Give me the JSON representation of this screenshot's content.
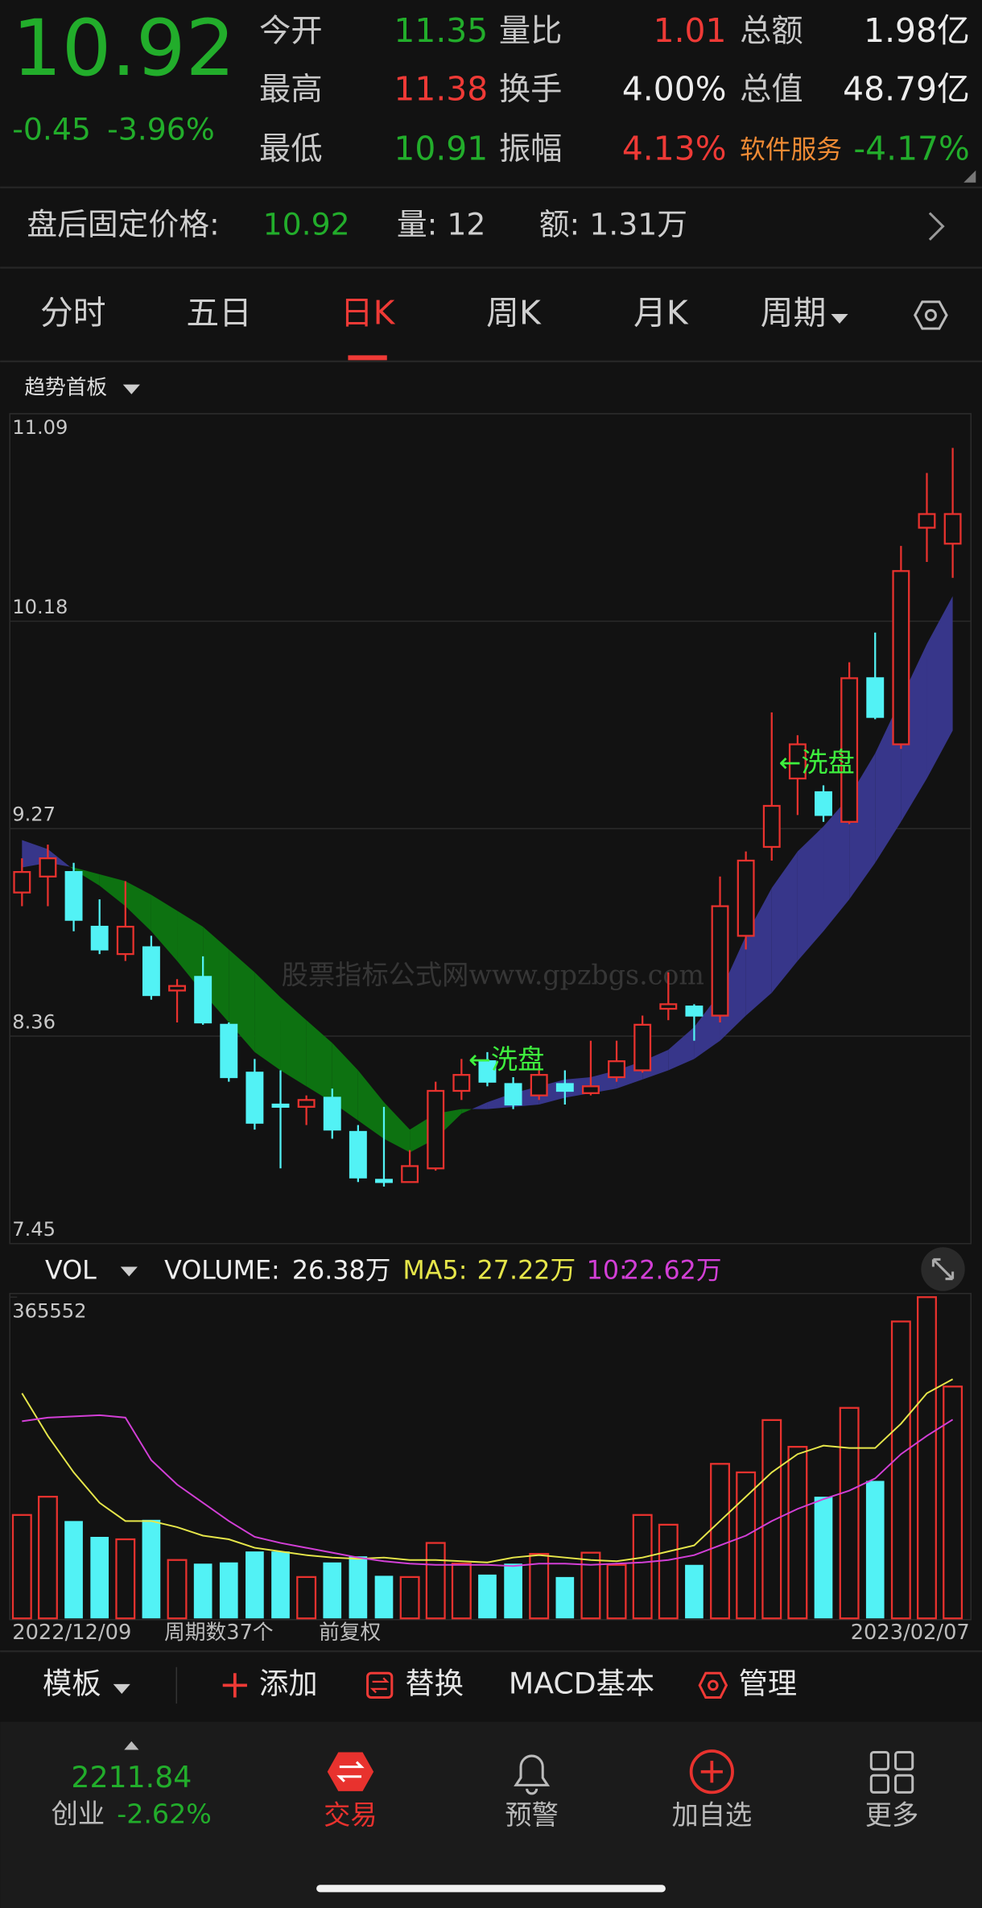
{
  "header": {
    "price": "10.92",
    "change": "-0.45",
    "change_pct": "-3.96%",
    "stats": [
      {
        "label": "今开",
        "value": "11.35"
      },
      {
        "label": "量比",
        "value": "1.01"
      },
      {
        "label": "总额",
        "value": "1.98亿"
      },
      {
        "label": "最高",
        "value": "11.38"
      },
      {
        "label": "换手",
        "value": "4.00%"
      },
      {
        "label": "总值",
        "value": "48.79亿"
      },
      {
        "label": "最低",
        "value": "10.91"
      },
      {
        "label": "振幅",
        "value": "4.13%"
      },
      {
        "label": "软件服务",
        "value": "-4.17%"
      }
    ]
  },
  "after_hours": {
    "label": "盘后固定价格:",
    "price": "10.92",
    "volume": "量: 12",
    "amount": "额: 1.31万"
  },
  "tabs": [
    "分时",
    "五日",
    "日K",
    "周K",
    "月K",
    "周期"
  ],
  "indicator": "趋势首板",
  "chart_data": [
    {
      "type": "candlestick",
      "up_color": "#e8322e",
      "down_color": "#52f2f5",
      "open": [
        8.99,
        9.06,
        9.08,
        8.84,
        8.72,
        8.75,
        8.56,
        8.62,
        8.41,
        8.2,
        8.06,
        8.05,
        8.09,
        7.94,
        7.73,
        7.72,
        7.78,
        8.12,
        8.25,
        8.15,
        8.1,
        8.15,
        8.11,
        8.18,
        8.21,
        8.48,
        8.49,
        8.45,
        8.8,
        9.19,
        9.49,
        9.43,
        9.3,
        9.93,
        9.64,
        10.59,
        10.52
      ],
      "high": [
        9.14,
        9.2,
        9.12,
        8.96,
        9.04,
        8.8,
        8.61,
        8.71,
        8.42,
        8.26,
        8.21,
        8.1,
        8.13,
        7.97,
        8.05,
        7.86,
        8.16,
        8.26,
        8.29,
        8.18,
        8.24,
        8.21,
        8.34,
        8.34,
        8.45,
        8.64,
        8.5,
        9.06,
        9.17,
        9.78,
        9.68,
        9.46,
        10.0,
        10.13,
        10.51,
        10.83,
        10.94
      ],
      "low": [
        8.93,
        8.93,
        8.82,
        8.72,
        8.69,
        8.52,
        8.42,
        8.41,
        8.16,
        7.95,
        7.78,
        7.97,
        7.91,
        7.72,
        7.7,
        7.72,
        7.77,
        8.08,
        8.14,
        8.04,
        8.08,
        8.06,
        8.1,
        8.16,
        8.2,
        8.43,
        8.34,
        8.42,
        8.74,
        9.13,
        9.33,
        9.3,
        9.29,
        9.75,
        9.62,
        10.44,
        10.37
      ],
      "close": [
        9.08,
        9.14,
        8.87,
        8.74,
        8.84,
        8.54,
        8.58,
        8.42,
        8.18,
        7.98,
        8.05,
        8.08,
        7.95,
        7.74,
        7.72,
        7.79,
        8.12,
        8.19,
        8.16,
        8.06,
        8.19,
        8.12,
        8.14,
        8.25,
        8.41,
        8.5,
        8.45,
        8.93,
        9.13,
        9.37,
        9.64,
        9.33,
        9.93,
        9.76,
        10.4,
        10.65,
        10.65
      ],
      "band": {
        "color_above": "#37368a",
        "color_below": "#0d7211",
        "series": [
          {
            "values": [
              9.22,
              9.18,
              9.09,
              9.02,
              8.93,
              8.82,
              8.69,
              8.55,
              8.42,
              8.29,
              8.21,
              8.14,
              8.07,
              7.99,
              7.91,
              7.85,
              7.91,
              8.02,
              8.07,
              8.11,
              8.14,
              8.17,
              8.18,
              8.21,
              8.25,
              8.3,
              8.4,
              8.55,
              8.8,
              9.01,
              9.17,
              9.28,
              9.41,
              9.6,
              9.84,
              10.08,
              10.29
            ]
          },
          {
            "values": [
              9.1,
              9.12,
              9.1,
              9.07,
              9.04,
              8.98,
              8.91,
              8.84,
              8.74,
              8.64,
              8.53,
              8.43,
              8.33,
              8.21,
              8.07,
              7.95,
              8.02,
              8.04,
              8.04,
              8.05,
              8.06,
              8.09,
              8.11,
              8.13,
              8.17,
              8.21,
              8.26,
              8.34,
              8.45,
              8.55,
              8.69,
              8.82,
              8.96,
              9.12,
              9.3,
              9.49,
              9.7
            ]
          }
        ]
      },
      "annotations": [
        "←洗盘",
        "←洗盘"
      ],
      "watermark": "股票指标公式网www.gpzbgs.com",
      "ylim": [
        7.45,
        11.09
      ],
      "yticks": [
        7.45,
        8.36,
        9.27,
        10.18,
        11.09
      ]
    },
    {
      "type": "bar",
      "indicator": "VOL",
      "label": "VOLUME:",
      "value_label": "26.38万",
      "up_color": "#e8322e",
      "down_color": "#52f2f5",
      "values": [
        117700,
        138470,
        110780,
        92775,
        90000,
        112160,
        66466,
        62311,
        63696,
        76158,
        76158,
        47080,
        63696,
        70620,
        48465,
        47080,
        85851,
        62311,
        49849,
        62311,
        73389,
        47080,
        74774,
        60927,
        117700,
        106622,
        60927,
        175857,
        166164,
        225706,
        195243,
        138470,
        239553,
        156471,
        337868,
        365552,
        263800
      ],
      "series": [
        {
          "name": "MA5:",
          "value_label": "27.22万",
          "color": "#e6e64a",
          "values": [
            256170,
            207705,
            166164,
            131547,
            110776,
            110776,
            103853,
            94160,
            90006,
            80313,
            76159,
            72004,
            69235,
            67850,
            69235,
            66466,
            66466,
            65081,
            63696,
            69235,
            72004,
            69235,
            66466,
            65081,
            69235,
            76159,
            83082,
            110776,
            138470,
            166164,
            186935,
            196627,
            193858,
            193858,
            221552,
            256170,
            272200
          ]
        },
        {
          "name": "10:",
          "value_label": "22.62万",
          "color": "#d23fd6",
          "values": [
            224321,
            228476,
            229860,
            231245,
            228476,
            180011,
            152317,
            131547,
            110776,
            92775,
            85851,
            80313,
            74774,
            69235,
            65081,
            62312,
            60927,
            60927,
            60927,
            59542,
            62312,
            62312,
            60927,
            62312,
            63696,
            66466,
            72004,
            83082,
            94160,
            110776,
            124623,
            135701,
            145394,
            159241,
            186935,
            207705,
            226200
          ]
        }
      ],
      "ylim": [
        0,
        365552
      ],
      "yticks": [
        365552
      ],
      "x_labels": [
        "2022/12/09",
        "周期数37个",
        "前复权",
        "2023/02/07"
      ]
    }
  ],
  "toolbar": [
    "模板",
    "添加",
    "替换",
    "MACD基本",
    "管理"
  ],
  "bottom_nav": {
    "index_value": "2211.84",
    "index_name": "创业",
    "index_change": "-2.62%",
    "items": [
      "交易",
      "预警",
      "加自选",
      "更多"
    ]
  }
}
